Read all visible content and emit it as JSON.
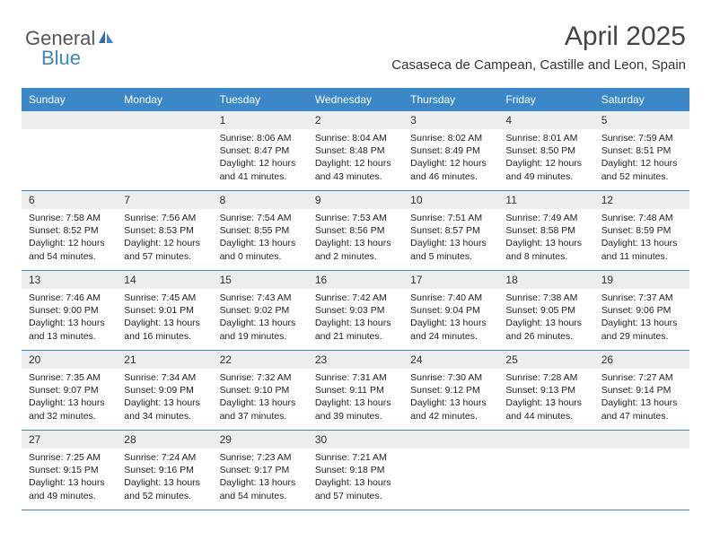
{
  "logo": {
    "text1": "General",
    "text2": "Blue"
  },
  "header": {
    "month_title": "April 2025",
    "location": "Casaseca de Campean, Castille and Leon, Spain"
  },
  "colors": {
    "header_bg": "#3b87c8",
    "daynum_bg": "#eceded",
    "row_border": "#3b87c8",
    "text": "#222222"
  },
  "weekdays": [
    "Sunday",
    "Monday",
    "Tuesday",
    "Wednesday",
    "Thursday",
    "Friday",
    "Saturday"
  ],
  "weeks": [
    [
      null,
      null,
      {
        "n": "1",
        "sr": "8:06 AM",
        "ss": "8:47 PM",
        "dl": "12 hours and 41 minutes."
      },
      {
        "n": "2",
        "sr": "8:04 AM",
        "ss": "8:48 PM",
        "dl": "12 hours and 43 minutes."
      },
      {
        "n": "3",
        "sr": "8:02 AM",
        "ss": "8:49 PM",
        "dl": "12 hours and 46 minutes."
      },
      {
        "n": "4",
        "sr": "8:01 AM",
        "ss": "8:50 PM",
        "dl": "12 hours and 49 minutes."
      },
      {
        "n": "5",
        "sr": "7:59 AM",
        "ss": "8:51 PM",
        "dl": "12 hours and 52 minutes."
      }
    ],
    [
      {
        "n": "6",
        "sr": "7:58 AM",
        "ss": "8:52 PM",
        "dl": "12 hours and 54 minutes."
      },
      {
        "n": "7",
        "sr": "7:56 AM",
        "ss": "8:53 PM",
        "dl": "12 hours and 57 minutes."
      },
      {
        "n": "8",
        "sr": "7:54 AM",
        "ss": "8:55 PM",
        "dl": "13 hours and 0 minutes."
      },
      {
        "n": "9",
        "sr": "7:53 AM",
        "ss": "8:56 PM",
        "dl": "13 hours and 2 minutes."
      },
      {
        "n": "10",
        "sr": "7:51 AM",
        "ss": "8:57 PM",
        "dl": "13 hours and 5 minutes."
      },
      {
        "n": "11",
        "sr": "7:49 AM",
        "ss": "8:58 PM",
        "dl": "13 hours and 8 minutes."
      },
      {
        "n": "12",
        "sr": "7:48 AM",
        "ss": "8:59 PM",
        "dl": "13 hours and 11 minutes."
      }
    ],
    [
      {
        "n": "13",
        "sr": "7:46 AM",
        "ss": "9:00 PM",
        "dl": "13 hours and 13 minutes."
      },
      {
        "n": "14",
        "sr": "7:45 AM",
        "ss": "9:01 PM",
        "dl": "13 hours and 16 minutes."
      },
      {
        "n": "15",
        "sr": "7:43 AM",
        "ss": "9:02 PM",
        "dl": "13 hours and 19 minutes."
      },
      {
        "n": "16",
        "sr": "7:42 AM",
        "ss": "9:03 PM",
        "dl": "13 hours and 21 minutes."
      },
      {
        "n": "17",
        "sr": "7:40 AM",
        "ss": "9:04 PM",
        "dl": "13 hours and 24 minutes."
      },
      {
        "n": "18",
        "sr": "7:38 AM",
        "ss": "9:05 PM",
        "dl": "13 hours and 26 minutes."
      },
      {
        "n": "19",
        "sr": "7:37 AM",
        "ss": "9:06 PM",
        "dl": "13 hours and 29 minutes."
      }
    ],
    [
      {
        "n": "20",
        "sr": "7:35 AM",
        "ss": "9:07 PM",
        "dl": "13 hours and 32 minutes."
      },
      {
        "n": "21",
        "sr": "7:34 AM",
        "ss": "9:09 PM",
        "dl": "13 hours and 34 minutes."
      },
      {
        "n": "22",
        "sr": "7:32 AM",
        "ss": "9:10 PM",
        "dl": "13 hours and 37 minutes."
      },
      {
        "n": "23",
        "sr": "7:31 AM",
        "ss": "9:11 PM",
        "dl": "13 hours and 39 minutes."
      },
      {
        "n": "24",
        "sr": "7:30 AM",
        "ss": "9:12 PM",
        "dl": "13 hours and 42 minutes."
      },
      {
        "n": "25",
        "sr": "7:28 AM",
        "ss": "9:13 PM",
        "dl": "13 hours and 44 minutes."
      },
      {
        "n": "26",
        "sr": "7:27 AM",
        "ss": "9:14 PM",
        "dl": "13 hours and 47 minutes."
      }
    ],
    [
      {
        "n": "27",
        "sr": "7:25 AM",
        "ss": "9:15 PM",
        "dl": "13 hours and 49 minutes."
      },
      {
        "n": "28",
        "sr": "7:24 AM",
        "ss": "9:16 PM",
        "dl": "13 hours and 52 minutes."
      },
      {
        "n": "29",
        "sr": "7:23 AM",
        "ss": "9:17 PM",
        "dl": "13 hours and 54 minutes."
      },
      {
        "n": "30",
        "sr": "7:21 AM",
        "ss": "9:18 PM",
        "dl": "13 hours and 57 minutes."
      },
      null,
      null,
      null
    ]
  ]
}
